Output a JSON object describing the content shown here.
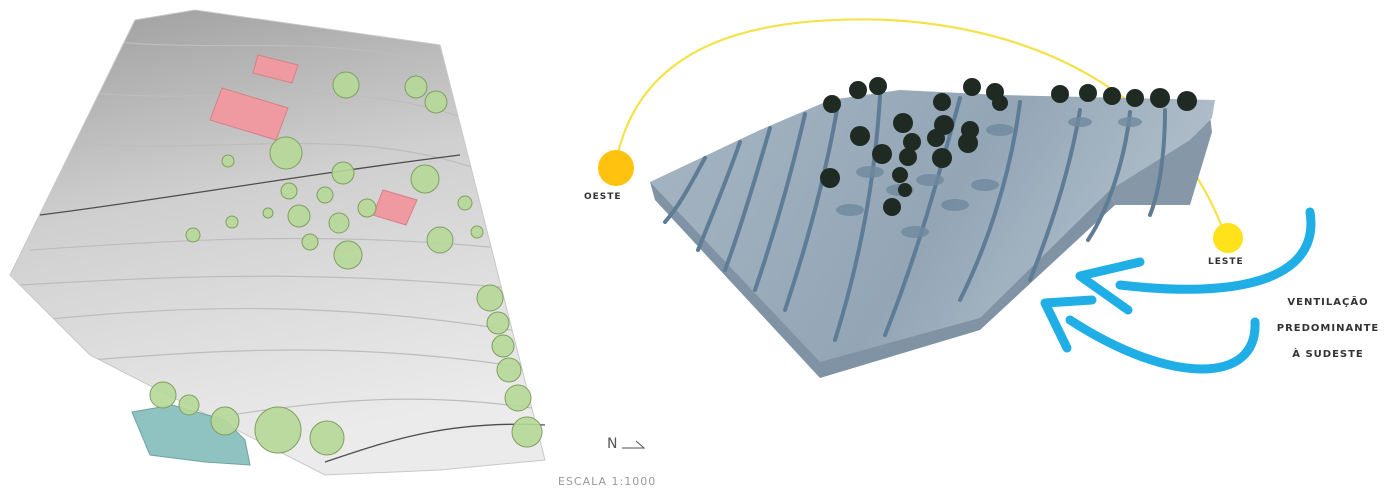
{
  "site_plan": {
    "colors": {
      "terrain_dark": "#a9a9a9",
      "terrain_light": "#e2e2e2",
      "building": "#ee9aa0",
      "tree": "#b6d898",
      "tree_stroke": "#7ea05e",
      "water": "#8fc3c2"
    },
    "north_label": "N",
    "scale_label": "ESCALA 1:1000"
  },
  "iso_view": {
    "colors": {
      "terrain_top": "#9fb0bf",
      "terrain_side": "#7f93a4",
      "contour": "#5f7c96",
      "tree": "#1e2a22",
      "sun": "#ffd200",
      "sun_path": "#f3e24a",
      "wind": "#1faee6"
    },
    "oeste_label": "OESTE",
    "leste_label": "LESTE",
    "ventilation_lines": [
      "VENTILAÇÃO",
      "PREDOMINANTE",
      "À SUDESTE"
    ]
  }
}
